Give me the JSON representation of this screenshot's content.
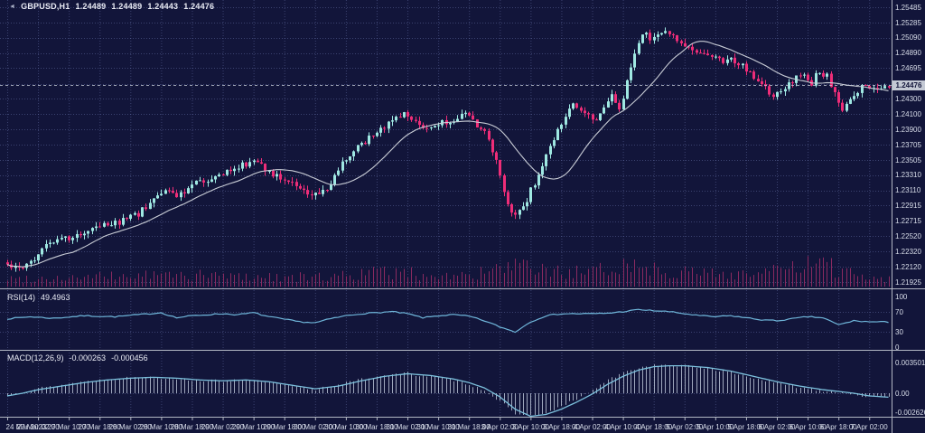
{
  "header": {
    "marker_icon": "◄",
    "symbol_period": "GBPUSD,H1",
    "open": "1.24489",
    "high": "1.24489",
    "low": "1.24443",
    "close": "1.24476"
  },
  "chart_data": {
    "type": "candlestick",
    "symbol": "GBPUSD",
    "timeframe": "H1",
    "current_price": "1.24476",
    "candles_count": 230,
    "price_axis": {
      "top_value": 1.25485,
      "bottom_value": 1.21925,
      "ticks": [
        "1.25485",
        "1.25285",
        "1.25090",
        "1.24890",
        "1.24695",
        "1.24495",
        "1.24300",
        "1.24100",
        "1.23900",
        "1.23705",
        "1.23505",
        "1.23310",
        "1.23110",
        "1.22915",
        "1.22715",
        "1.22520",
        "1.22320",
        "1.22120",
        "1.21925"
      ]
    },
    "time_axis": {
      "labels": [
        "24 Mar 2023",
        "27 Mar 02:00",
        "27 Mar 10:00",
        "27 Mar 18:00",
        "28 Mar 02:00",
        "28 Mar 10:00",
        "28 Mar 18:00",
        "29 Mar 02:00",
        "29 Mar 10:00",
        "29 Mar 18:00",
        "30 Mar 02:00",
        "30 Mar 10:00",
        "30 Mar 18:00",
        "31 Mar 02:00",
        "31 Mar 10:00",
        "31 Mar 18:00",
        "3 Apr 02:00",
        "3 Apr 10:00",
        "3 Apr 18:00",
        "4 Apr 02:00",
        "4 Apr 10:00",
        "4 Apr 18:00",
        "5 Apr 02:00",
        "5 Apr 10:00",
        "5 Apr 18:00",
        "6 Apr 02:00",
        "6 Apr 10:00",
        "6 Apr 18:00",
        "7 Apr 02:00"
      ],
      "candles_per_label": 8
    },
    "price_path_anchors": [
      [
        0,
        1.2218
      ],
      [
        3,
        1.2207
      ],
      [
        6,
        1.222
      ],
      [
        10,
        1.2238
      ],
      [
        14,
        1.2246
      ],
      [
        18,
        1.2252
      ],
      [
        22,
        1.2262
      ],
      [
        26,
        1.2268
      ],
      [
        30,
        1.2272
      ],
      [
        34,
        1.2281
      ],
      [
        38,
        1.2297
      ],
      [
        41,
        1.2311
      ],
      [
        44,
        1.2303
      ],
      [
        48,
        1.2318
      ],
      [
        52,
        1.2325
      ],
      [
        56,
        1.2331
      ],
      [
        60,
        1.2341
      ],
      [
        63,
        1.2349
      ],
      [
        66,
        1.2342
      ],
      [
        70,
        1.2328
      ],
      [
        74,
        1.2318
      ],
      [
        78,
        1.231
      ],
      [
        81,
        1.2304
      ],
      [
        84,
        1.2321
      ],
      [
        88,
        1.2353
      ],
      [
        92,
        1.2371
      ],
      [
        96,
        1.2389
      ],
      [
        100,
        1.2399
      ],
      [
        103,
        1.2409
      ],
      [
        106,
        1.2401
      ],
      [
        109,
        1.2389
      ],
      [
        112,
        1.2399
      ],
      [
        116,
        1.2403
      ],
      [
        119,
        1.2409
      ],
      [
        122,
        1.2397
      ],
      [
        125,
        1.2378
      ],
      [
        127,
        1.2352
      ],
      [
        129,
        1.2312
      ],
      [
        131,
        1.228
      ],
      [
        133,
        1.2284
      ],
      [
        135,
        1.23
      ],
      [
        137,
        1.2322
      ],
      [
        139,
        1.2346
      ],
      [
        141,
        1.237
      ],
      [
        143,
        1.239
      ],
      [
        145,
        1.2411
      ],
      [
        147,
        1.2421
      ],
      [
        150,
        1.2409
      ],
      [
        153,
        1.2399
      ],
      [
        155,
        1.2419
      ],
      [
        157,
        1.2433
      ],
      [
        159,
        1.2412
      ],
      [
        161,
        1.245
      ],
      [
        163,
        1.249
      ],
      [
        165,
        1.2516
      ],
      [
        167,
        1.2506
      ],
      [
        169,
        1.2513
      ],
      [
        171,
        1.2519
      ],
      [
        173,
        1.2509
      ],
      [
        176,
        1.2499
      ],
      [
        179,
        1.2491
      ],
      [
        182,
        1.2486
      ],
      [
        185,
        1.2479
      ],
      [
        188,
        1.2483
      ],
      [
        191,
        1.2471
      ],
      [
        194,
        1.2459
      ],
      [
        197,
        1.2449
      ],
      [
        199,
        1.2429
      ],
      [
        201,
        1.2441
      ],
      [
        204,
        1.2453
      ],
      [
        207,
        1.2463
      ],
      [
        209,
        1.2451
      ],
      [
        211,
        1.2467
      ],
      [
        213,
        1.2459
      ],
      [
        215,
        1.2439
      ],
      [
        217,
        1.2413
      ],
      [
        219,
        1.2433
      ],
      [
        221,
        1.2441
      ],
      [
        223,
        1.2446
      ],
      [
        226,
        1.2443
      ],
      [
        229,
        1.2448
      ]
    ],
    "moving_average": {
      "period": 18
    },
    "volume_activity_anchors": [
      [
        0,
        0.3
      ],
      [
        20,
        0.35
      ],
      [
        40,
        0.45
      ],
      [
        60,
        0.4
      ],
      [
        80,
        0.35
      ],
      [
        97,
        0.55
      ],
      [
        110,
        0.45
      ],
      [
        120,
        0.4
      ],
      [
        131,
        0.75
      ],
      [
        140,
        0.6
      ],
      [
        152,
        0.5
      ],
      [
        160,
        0.9
      ],
      [
        170,
        0.65
      ],
      [
        180,
        0.5
      ],
      [
        192,
        0.5
      ],
      [
        200,
        0.6
      ],
      [
        211,
        0.85
      ],
      [
        218,
        0.55
      ],
      [
        224,
        0.4
      ],
      [
        229,
        0.3
      ]
    ],
    "rsi": {
      "label": "RSI(14)",
      "value": "49.4963",
      "axis_ticks": [
        "100",
        "70",
        "30",
        "0"
      ],
      "axis_tick_values": [
        100,
        70,
        30,
        0
      ],
      "levels": [
        70,
        30
      ],
      "range": [
        0,
        100
      ],
      "path_anchors": [
        [
          0,
          56
        ],
        [
          6,
          60
        ],
        [
          12,
          57
        ],
        [
          20,
          62
        ],
        [
          28,
          60
        ],
        [
          34,
          64
        ],
        [
          40,
          68
        ],
        [
          44,
          58
        ],
        [
          48,
          62
        ],
        [
          56,
          66
        ],
        [
          60,
          64
        ],
        [
          64,
          68
        ],
        [
          68,
          60
        ],
        [
          72,
          55
        ],
        [
          76,
          50
        ],
        [
          80,
          48
        ],
        [
          84,
          56
        ],
        [
          88,
          62
        ],
        [
          92,
          66
        ],
        [
          96,
          68
        ],
        [
          100,
          70
        ],
        [
          104,
          66
        ],
        [
          108,
          58
        ],
        [
          112,
          62
        ],
        [
          116,
          64
        ],
        [
          120,
          61
        ],
        [
          124,
          52
        ],
        [
          128,
          40
        ],
        [
          132,
          30
        ],
        [
          136,
          50
        ],
        [
          140,
          62
        ],
        [
          144,
          66
        ],
        [
          148,
          66
        ],
        [
          152,
          66
        ],
        [
          156,
          67
        ],
        [
          160,
          70
        ],
        [
          164,
          74
        ],
        [
          168,
          72
        ],
        [
          172,
          70
        ],
        [
          176,
          66
        ],
        [
          180,
          62
        ],
        [
          184,
          60
        ],
        [
          188,
          62
        ],
        [
          192,
          58
        ],
        [
          196,
          54
        ],
        [
          200,
          52
        ],
        [
          204,
          56
        ],
        [
          208,
          60
        ],
        [
          212,
          58
        ],
        [
          216,
          44
        ],
        [
          220,
          52
        ],
        [
          224,
          50
        ],
        [
          229,
          49.5
        ]
      ]
    },
    "macd": {
      "label": "MACD(12,26,9)",
      "value_main": "-0.000263",
      "value_signal": "-0.000456",
      "axis_ticks": [
        "0.003501",
        "0.00",
        "-0.002626"
      ],
      "axis_tick_values": [
        0.003501,
        0,
        -0.002626
      ],
      "signal_anchors": [
        [
          0,
          -0.0003
        ],
        [
          4,
          0.0
        ],
        [
          8,
          0.0004
        ],
        [
          14,
          0.0008
        ],
        [
          20,
          0.0012
        ],
        [
          26,
          0.0015
        ],
        [
          32,
          0.0017
        ],
        [
          38,
          0.0018
        ],
        [
          44,
          0.0017
        ],
        [
          50,
          0.0015
        ],
        [
          56,
          0.0014
        ],
        [
          62,
          0.0015
        ],
        [
          68,
          0.0013
        ],
        [
          74,
          0.0009
        ],
        [
          80,
          0.0005
        ],
        [
          86,
          0.0008
        ],
        [
          92,
          0.0014
        ],
        [
          98,
          0.0019
        ],
        [
          104,
          0.0022
        ],
        [
          110,
          0.002
        ],
        [
          116,
          0.0016
        ],
        [
          120,
          0.0012
        ],
        [
          124,
          0.0006
        ],
        [
          128,
          -0.0004
        ],
        [
          132,
          -0.0018
        ],
        [
          136,
          -0.0026
        ],
        [
          140,
          -0.0024
        ],
        [
          144,
          -0.0018
        ],
        [
          148,
          -0.001
        ],
        [
          152,
          -0.0001
        ],
        [
          156,
          0.001
        ],
        [
          160,
          0.0019
        ],
        [
          164,
          0.0026
        ],
        [
          168,
          0.003
        ],
        [
          172,
          0.0031
        ],
        [
          176,
          0.0031
        ],
        [
          182,
          0.0029
        ],
        [
          188,
          0.0025
        ],
        [
          194,
          0.0019
        ],
        [
          200,
          0.0013
        ],
        [
          206,
          0.0008
        ],
        [
          212,
          0.0004
        ],
        [
          216,
          0.0002
        ],
        [
          220,
          0.0
        ],
        [
          224,
          -0.0003
        ],
        [
          229,
          -0.00045
        ]
      ]
    },
    "colors": {
      "background": "#12153a",
      "grid": "#7d8cc8",
      "bull_candle": "#9fe8e2",
      "bear_candle": "#ee2d78",
      "ma_line": "#c9cdd6",
      "volume_bar": "#8a2a60",
      "rsi_line": "#6fb6da",
      "macd_signal_line": "#7cc0dc",
      "macd_histogram": "#b7c0d4",
      "separator": "#b2b7c4",
      "axis_text": "#d9deea",
      "price_tag_bg": "#c4c9d4",
      "current_price_line": "#c3c8d3"
    }
  }
}
